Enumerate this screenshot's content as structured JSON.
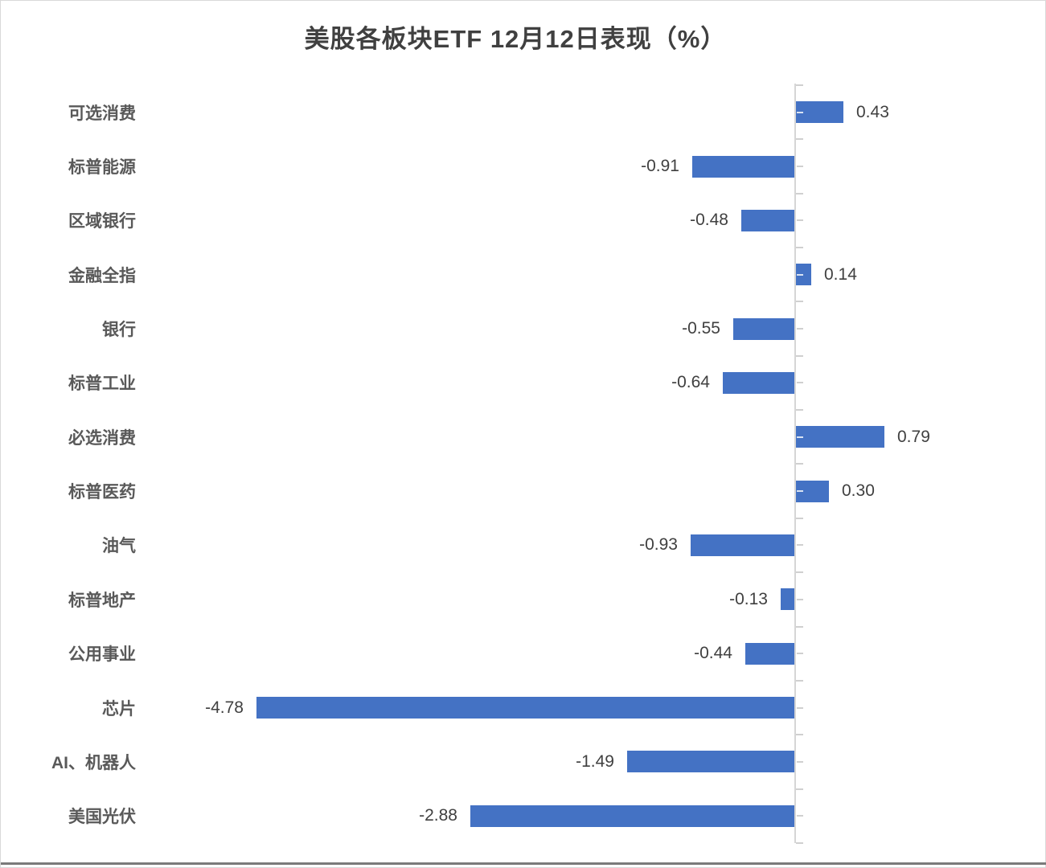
{
  "window": {
    "background": "#ffffff",
    "border_color": "#d9d9d9",
    "bottom_edge_color": "#7a7a7a"
  },
  "chart_data": {
    "type": "bar",
    "orientation": "horizontal",
    "title": "美股各板块ETF 12月12日表现（%）",
    "categories": [
      "可选消费",
      "标普能源",
      "区域银行",
      "金融全指",
      "银行",
      "标普工业",
      "必选消费",
      "标普医药",
      "油气",
      "标普地产",
      "公用事业",
      "芯片",
      "AI、机器人",
      "美国光伏"
    ],
    "values": [
      0.43,
      -0.91,
      -0.48,
      0.14,
      -0.55,
      -0.64,
      0.79,
      0.3,
      -0.93,
      -0.13,
      -0.44,
      -4.78,
      -1.49,
      -2.88
    ],
    "value_labels": [
      "0.43",
      "-0.91",
      "-0.48",
      "0.14",
      "-0.55",
      "-0.64",
      "0.79",
      "0.30",
      "-0.93",
      "-0.13",
      "-0.44",
      "-4.78",
      "-1.49",
      "-2.88"
    ],
    "data_label_position": "outside-end",
    "xlim": [
      -5.0,
      1.0
    ],
    "grid": false,
    "legend": false,
    "value_axis_labels_visible": false,
    "bar_color": "#4472c4",
    "axis_color": "#d6d6d6",
    "tick_color": "#d0d0d0",
    "title_color": "#404040",
    "category_label_color": "#595959",
    "value_label_color": "#404040"
  }
}
